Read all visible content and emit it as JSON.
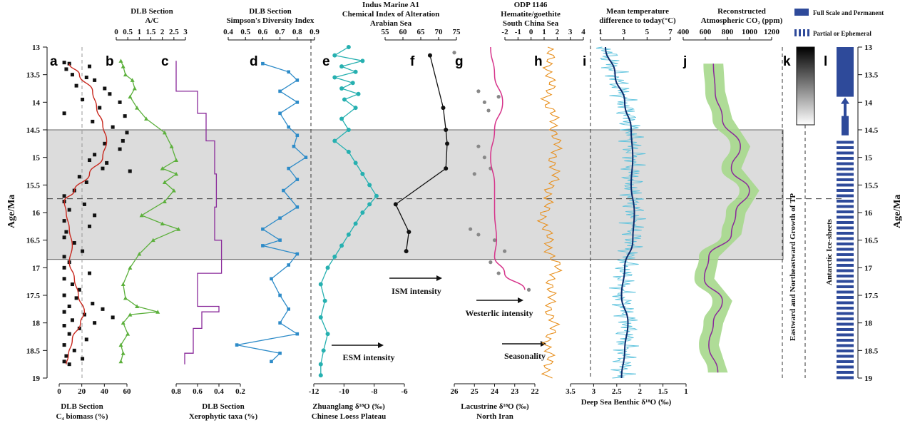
{
  "figure": {
    "age_axis_label": "Age/Ma",
    "age_ticks": [
      "13",
      "13.5",
      "14",
      "14.5",
      "15",
      "15.5",
      "16",
      "16.5",
      "17",
      "17.5",
      "18",
      "18.5",
      "19"
    ],
    "age_range": [
      13,
      19
    ],
    "shaded_interval": [
      14.5,
      16.85
    ],
    "dashed_line_age": 15.75,
    "colors": {
      "shade": "#dcdcdc",
      "red": "#c8281e",
      "green": "#5cb03c",
      "purple": "#8a2a9a",
      "blue": "#2d8bc8",
      "teal": "#26b0b0",
      "black": "#111111",
      "magenta": "#d6338a",
      "orange": "#e8901e",
      "navy": "#0d2b6b",
      "cyan": "#5bc2dd",
      "lightgreen": "#a6d88c",
      "ice": "#2e4a9a"
    }
  },
  "panels": {
    "a": {
      "letter": "a",
      "top_title": "",
      "bottom_title_1": "DLB Section",
      "bottom_title_2": "C₄ biomass (%)",
      "ticks": [
        "0",
        "20",
        "40",
        "60"
      ]
    },
    "b": {
      "letter": "b",
      "top_title_1": "DLB Section",
      "top_title_2": "A/C",
      "ticks": [
        "0",
        "0.5",
        "1",
        "1.5",
        "2",
        "2.5",
        "3"
      ]
    },
    "c": {
      "letter": "c",
      "bottom_title_1": "DLB Section",
      "bottom_title_2": "Xerophytic taxa (%)",
      "ticks": [
        "0.8",
        "0.6",
        "0.4",
        "0.2"
      ]
    },
    "d": {
      "letter": "d",
      "top_title_1": "DLB Section",
      "top_title_2": "Simpson's Diversity Index",
      "ticks": [
        "0.4",
        "0.5",
        "0.6",
        "0.7",
        "0.8",
        "0.9"
      ]
    },
    "e": {
      "letter": "e",
      "bottom_title_1": "Zhuanglang δ¹⁸O (‰)",
      "bottom_title_2": "Chinese Loess Plateau",
      "ticks": [
        "-12",
        "-10",
        "-8",
        "-6"
      ],
      "annotation": "ESM intensity"
    },
    "f": {
      "letter": "f",
      "top_title_1": "Indus Marine A1",
      "top_title_2": "Chemical Index of Alteration",
      "top_title_3": "Arabian Sea",
      "ticks": [
        "55",
        "60",
        "65",
        "70",
        "75"
      ],
      "annotation": "ISM intensity"
    },
    "g": {
      "letter": "g",
      "bottom_title_1": "Lacustrine δ¹⁸O (‰)",
      "bottom_title_2": "North Iran",
      "ticks": [
        "26",
        "25",
        "24",
        "23",
        "22"
      ],
      "annotation": "Westerlic intensity"
    },
    "h": {
      "letter": "h",
      "top_title_1": "ODP 1146",
      "top_title_2": "Hematite/goethite",
      "top_title_3": "South China Sea",
      "ticks_top": [
        "-2",
        "-1",
        "0",
        "1",
        "2",
        "3",
        "4"
      ],
      "ticks_bottom": [
        "3.5",
        "3",
        "2.5",
        "2",
        "1.5",
        "1"
      ],
      "annotation": "Seasonality"
    },
    "i": {
      "letter": "i",
      "top_title_1": "Mean temperature",
      "top_title_2": "difference to today(°C)",
      "ticks": [
        "1",
        "3",
        "5",
        "7"
      ],
      "bottom_title": "Deep Sea Benthic δ¹⁸O (‰)"
    },
    "j": {
      "letter": "j",
      "top_title_1": "Reconstructed",
      "top_title_2": "Atmospheric CO₂ (ppm)",
      "ticks": [
        "400",
        "600",
        "800",
        "1000",
        "1200"
      ]
    },
    "k": {
      "letter": "k",
      "vertical_label": "Eastward and Northeastward Growth of TP"
    },
    "l": {
      "letter": "l",
      "vertical_label": "Antarctic Ice-sheets",
      "legend_full": "Full Scale and Permanent",
      "legend_partial": "Partial or Ephemeral"
    }
  },
  "chart_data": [
    {
      "panel": "a",
      "type": "scatter",
      "xlabel": "C₄ biomass (%)",
      "xlim": [
        -5,
        62
      ],
      "points": [
        [
          13.28,
          0
        ],
        [
          13.3,
          5
        ],
        [
          13.35,
          25
        ],
        [
          13.4,
          2
        ],
        [
          13.5,
          8
        ],
        [
          13.55,
          22
        ],
        [
          13.6,
          30
        ],
        [
          13.7,
          12
        ],
        [
          13.75,
          40
        ],
        [
          13.85,
          45
        ],
        [
          13.95,
          18
        ],
        [
          14.0,
          55
        ],
        [
          14.1,
          35
        ],
        [
          14.2,
          0
        ],
        [
          14.25,
          60
        ],
        [
          14.35,
          28
        ],
        [
          14.45,
          48
        ],
        [
          14.55,
          62
        ],
        [
          14.7,
          58
        ],
        [
          14.75,
          40
        ],
        [
          14.85,
          55
        ],
        [
          14.95,
          30
        ],
        [
          15.05,
          25
        ],
        [
          15.1,
          42
        ],
        [
          15.2,
          38
        ],
        [
          15.25,
          65
        ],
        [
          15.35,
          15
        ],
        [
          15.45,
          22
        ],
        [
          15.6,
          10
        ],
        [
          15.7,
          0
        ],
        [
          15.8,
          0
        ],
        [
          15.85,
          20
        ],
        [
          15.95,
          5
        ],
        [
          16.05,
          30
        ],
        [
          16.15,
          0
        ],
        [
          16.25,
          25
        ],
        [
          16.35,
          2
        ],
        [
          16.45,
          0
        ],
        [
          16.55,
          10
        ],
        [
          16.7,
          18
        ],
        [
          16.8,
          0
        ],
        [
          16.9,
          5
        ],
        [
          17.0,
          0
        ],
        [
          17.1,
          25
        ],
        [
          17.2,
          0
        ],
        [
          17.3,
          8
        ],
        [
          17.4,
          15
        ],
        [
          17.5,
          0
        ],
        [
          17.55,
          12
        ],
        [
          17.65,
          28
        ],
        [
          17.7,
          5
        ],
        [
          17.75,
          38
        ],
        [
          17.8,
          0
        ],
        [
          17.85,
          20
        ],
        [
          17.9,
          48
        ],
        [
          17.95,
          8
        ],
        [
          18.0,
          30
        ],
        [
          18.05,
          0
        ],
        [
          18.1,
          15
        ],
        [
          18.2,
          5
        ],
        [
          18.3,
          22
        ],
        [
          18.4,
          0
        ],
        [
          18.5,
          10
        ],
        [
          18.6,
          2
        ],
        [
          18.65,
          18
        ],
        [
          18.7,
          0
        ],
        [
          18.75,
          5
        ]
      ],
      "smooth": [
        [
          13.3,
          5
        ],
        [
          13.5,
          15
        ],
        [
          13.8,
          28
        ],
        [
          14.1,
          32
        ],
        [
          14.4,
          38
        ],
        [
          14.7,
          42
        ],
        [
          15.0,
          38
        ],
        [
          15.3,
          25
        ],
        [
          15.6,
          10
        ],
        [
          15.8,
          0
        ],
        [
          16.0,
          2
        ],
        [
          16.3,
          5
        ],
        [
          16.6,
          8
        ],
        [
          16.9,
          5
        ],
        [
          17.2,
          10
        ],
        [
          17.5,
          14
        ],
        [
          17.8,
          20
        ],
        [
          18.0,
          16
        ],
        [
          18.3,
          8
        ],
        [
          18.6,
          4
        ],
        [
          18.75,
          2
        ]
      ]
    },
    {
      "panel": "b",
      "type": "line",
      "xlabel": "A/C",
      "xlim": [
        0,
        3
      ],
      "points": [
        [
          13.25,
          0.2
        ],
        [
          13.35,
          0.3
        ],
        [
          13.5,
          0.4
        ],
        [
          13.6,
          0.7
        ],
        [
          13.75,
          0.8
        ],
        [
          13.9,
          0.6
        ],
        [
          14.1,
          0.9
        ],
        [
          14.3,
          1.3
        ],
        [
          14.55,
          2.1
        ],
        [
          14.8,
          2.4
        ],
        [
          15.05,
          2.6
        ],
        [
          15.2,
          2.0
        ],
        [
          15.3,
          2.6
        ],
        [
          15.45,
          2.1
        ],
        [
          15.6,
          2.5
        ],
        [
          15.8,
          2.1
        ],
        [
          16.05,
          1.1
        ],
        [
          16.2,
          2.0
        ],
        [
          16.3,
          2.7
        ],
        [
          16.5,
          1.6
        ],
        [
          16.75,
          1.0
        ],
        [
          17.0,
          0.6
        ],
        [
          17.3,
          0.3
        ],
        [
          17.55,
          0.4
        ],
        [
          17.7,
          0.9
        ],
        [
          17.8,
          1.8
        ],
        [
          17.85,
          0.6
        ],
        [
          18.0,
          0.3
        ],
        [
          18.2,
          0.5
        ],
        [
          18.4,
          0.2
        ],
        [
          18.55,
          0.3
        ],
        [
          18.7,
          0.2
        ]
      ]
    },
    {
      "panel": "c",
      "type": "step",
      "xlabel": "Xerophytic taxa (%)",
      "xlim": [
        0.85,
        0.1
      ],
      "points": [
        [
          13.25,
          0.85
        ],
        [
          13.8,
          0.85
        ],
        [
          13.8,
          0.6
        ],
        [
          14.2,
          0.6
        ],
        [
          14.2,
          0.5
        ],
        [
          14.7,
          0.5
        ],
        [
          14.7,
          0.4
        ],
        [
          15.3,
          0.4
        ],
        [
          15.3,
          0.38
        ],
        [
          15.9,
          0.38
        ],
        [
          15.9,
          0.4
        ],
        [
          16.5,
          0.4
        ],
        [
          16.5,
          0.32
        ],
        [
          17.1,
          0.32
        ],
        [
          17.1,
          0.6
        ],
        [
          17.7,
          0.6
        ],
        [
          17.7,
          0.35
        ],
        [
          17.8,
          0.35
        ],
        [
          17.8,
          0.55
        ],
        [
          18.1,
          0.55
        ],
        [
          18.1,
          0.65
        ],
        [
          18.55,
          0.65
        ],
        [
          18.55,
          0.75
        ],
        [
          18.75,
          0.75
        ]
      ]
    },
    {
      "panel": "d",
      "type": "line",
      "xlabel": "Simpson's Diversity Index",
      "xlim": [
        0.4,
        0.9
      ],
      "points": [
        [
          13.3,
          0.6
        ],
        [
          13.45,
          0.75
        ],
        [
          13.6,
          0.8
        ],
        [
          13.8,
          0.7
        ],
        [
          14.0,
          0.8
        ],
        [
          14.2,
          0.7
        ],
        [
          14.45,
          0.75
        ],
        [
          14.6,
          0.8
        ],
        [
          14.8,
          0.78
        ],
        [
          15.0,
          0.85
        ],
        [
          15.2,
          0.75
        ],
        [
          15.4,
          0.8
        ],
        [
          15.6,
          0.72
        ],
        [
          15.9,
          0.8
        ],
        [
          16.1,
          0.7
        ],
        [
          16.3,
          0.6
        ],
        [
          16.5,
          0.7
        ],
        [
          16.6,
          0.6
        ],
        [
          16.75,
          0.8
        ],
        [
          16.95,
          0.75
        ],
        [
          17.2,
          0.65
        ],
        [
          17.5,
          0.7
        ],
        [
          17.75,
          0.75
        ],
        [
          18.0,
          0.7
        ],
        [
          18.2,
          0.8
        ],
        [
          18.4,
          0.45
        ],
        [
          18.55,
          0.7
        ],
        [
          18.7,
          0.65
        ]
      ]
    },
    {
      "panel": "e",
      "type": "line",
      "xlabel": "Zhuanglang δ¹⁸O (‰)",
      "xlim": [
        -12,
        -5.5
      ],
      "points": [
        [
          13.0,
          -9.5
        ],
        [
          13.15,
          -10.5
        ],
        [
          13.25,
          -8.5
        ],
        [
          13.35,
          -10.0
        ],
        [
          13.45,
          -9.0
        ],
        [
          13.55,
          -10.5
        ],
        [
          13.65,
          -9.2
        ],
        [
          13.75,
          -10.0
        ],
        [
          13.85,
          -8.8
        ],
        [
          13.95,
          -9.8
        ],
        [
          14.1,
          -9.0
        ],
        [
          14.3,
          -10.0
        ],
        [
          14.5,
          -9.5
        ],
        [
          14.7,
          -10.5
        ],
        [
          14.9,
          -9.5
        ],
        [
          15.1,
          -9.0
        ],
        [
          15.3,
          -8.5
        ],
        [
          15.5,
          -8.0
        ],
        [
          15.7,
          -7.5
        ],
        [
          15.85,
          -8.0
        ],
        [
          16.0,
          -8.5
        ],
        [
          16.2,
          -9.0
        ],
        [
          16.4,
          -9.5
        ],
        [
          16.6,
          -10.0
        ],
        [
          16.8,
          -10.5
        ],
        [
          17.0,
          -11.0
        ],
        [
          17.3,
          -11.5
        ],
        [
          17.6,
          -11.2
        ],
        [
          17.9,
          -11.5
        ],
        [
          18.2,
          -11.0
        ],
        [
          18.5,
          -11.3
        ],
        [
          18.75,
          -11.5
        ],
        [
          18.95,
          -11.5
        ]
      ]
    },
    {
      "panel": "f",
      "type": "line",
      "xlabel": "Chemical Index of Alteration",
      "xlim": [
        50,
        77
      ],
      "points": [
        [
          13.15,
          67
        ],
        [
          14.1,
          72
        ],
        [
          14.5,
          73
        ],
        [
          14.75,
          73.5
        ],
        [
          15.2,
          73
        ],
        [
          15.85,
          54
        ],
        [
          16.35,
          59
        ],
        [
          16.7,
          58
        ]
      ]
    },
    {
      "panel": "g",
      "type": "scatter+line",
      "xlabel": "Lacustrine δ¹⁸O (‰)",
      "xlim": [
        26,
        22
      ],
      "points": [
        [
          13.1,
          26
        ],
        [
          13.8,
          24.8
        ],
        [
          13.9,
          23.8
        ],
        [
          14.0,
          24.5
        ],
        [
          14.15,
          24.3
        ],
        [
          14.8,
          24.8
        ],
        [
          15.0,
          24.5
        ],
        [
          15.2,
          24.2
        ],
        [
          15.3,
          25.0
        ],
        [
          16.3,
          25.2
        ],
        [
          16.4,
          24.8
        ],
        [
          16.5,
          24.0
        ],
        [
          16.7,
          23.5
        ],
        [
          16.9,
          24.2
        ],
        [
          17.1,
          23.8
        ],
        [
          17.4,
          22.3
        ]
      ],
      "smooth": [
        [
          13.0,
          24.2
        ],
        [
          13.5,
          24.0
        ],
        [
          14.0,
          23.6
        ],
        [
          14.5,
          24.0
        ],
        [
          15.0,
          24.2
        ],
        [
          15.5,
          24.0
        ],
        [
          16.0,
          24.0
        ],
        [
          16.5,
          23.9
        ],
        [
          16.8,
          24.0
        ],
        [
          17.1,
          23.5
        ],
        [
          17.4,
          22.5
        ]
      ]
    },
    {
      "panel": "h",
      "type": "line",
      "xlabel": "Hematite/goethite",
      "xlim": [
        -2,
        4
      ],
      "points": [
        [
          13.0,
          0.8
        ],
        [
          13.5,
          1.2
        ],
        [
          14.0,
          0.8
        ],
        [
          14.5,
          2.0
        ],
        [
          15.0,
          1.8
        ],
        [
          15.5,
          1.5
        ],
        [
          16.0,
          0.2
        ],
        [
          16.5,
          0.8
        ],
        [
          17.0,
          2.0
        ],
        [
          17.5,
          1.0
        ],
        [
          18.0,
          1.5
        ],
        [
          18.5,
          0.8
        ],
        [
          19.0,
          1.0
        ]
      ]
    },
    {
      "panel": "i",
      "type": "line",
      "xlabel": "Deep Sea Benthic δ¹⁸O (‰)",
      "xlim": [
        3,
        1
      ],
      "smooth": [
        [
          13.0,
          2.8
        ],
        [
          13.5,
          2.5
        ],
        [
          14.0,
          2.2
        ],
        [
          14.5,
          2.0
        ],
        [
          15.0,
          1.95
        ],
        [
          15.5,
          2.0
        ],
        [
          16.0,
          1.9
        ],
        [
          16.5,
          1.95
        ],
        [
          17.0,
          2.2
        ],
        [
          17.5,
          2.3
        ],
        [
          18.0,
          2.1
        ],
        [
          18.5,
          2.2
        ],
        [
          19.0,
          2.3
        ]
      ]
    },
    {
      "panel": "j",
      "type": "area",
      "xlabel": "Atmospheric CO₂ (ppm)",
      "xlim": [
        300,
        1250
      ],
      "smooth": [
        [
          13.3,
          500
        ],
        [
          13.8,
          520
        ],
        [
          14.3,
          600
        ],
        [
          14.8,
          800
        ],
        [
          15.2,
          700
        ],
        [
          15.6,
          900
        ],
        [
          16.0,
          750
        ],
        [
          16.4,
          700
        ],
        [
          16.8,
          450
        ],
        [
          17.2,
          400
        ],
        [
          17.6,
          600
        ],
        [
          18.0,
          500
        ],
        [
          18.4,
          450
        ],
        [
          18.9,
          550
        ]
      ]
    },
    {
      "panel": "l",
      "type": "bar",
      "xlabel": "Antarctic Ice-sheets",
      "full_scale": [
        13.0,
        13.9
      ],
      "partial": [
        14.7,
        19.0
      ]
    }
  ]
}
